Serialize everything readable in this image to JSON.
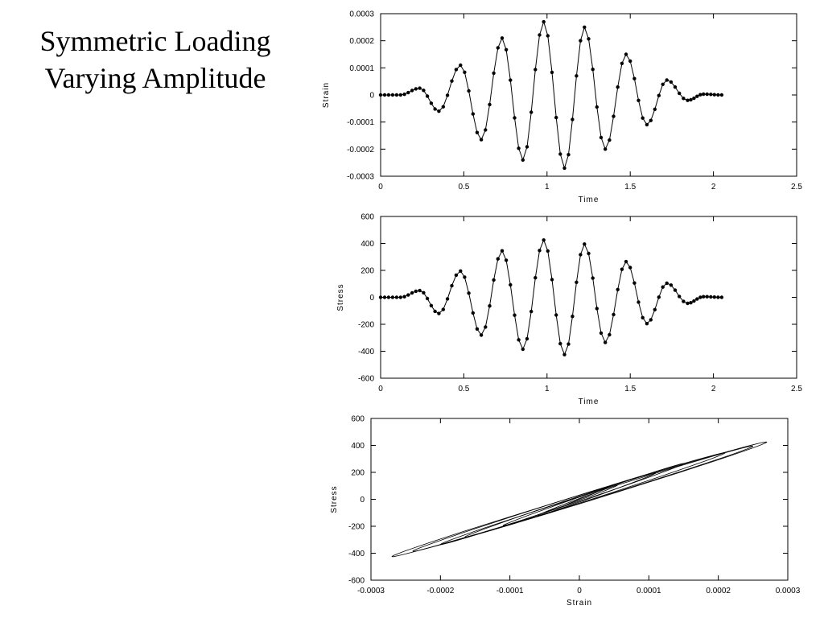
{
  "slide": {
    "title_line1": "Symmetric Loading",
    "title_line2": "Varying Amplitude"
  },
  "chart_data": [
    {
      "type": "line",
      "xlabel": "Time",
      "ylabel": "Strain",
      "xlim": [
        0,
        2.5
      ],
      "ylim": [
        -0.0003,
        0.0003
      ],
      "xticks": [
        0,
        0.5,
        1,
        1.5,
        2,
        2.5
      ],
      "xtick_labels": [
        "0",
        "0.5",
        "1",
        "1.5",
        "2",
        "2.5"
      ],
      "yticks": [
        -0.0003,
        -0.0002,
        -0.0001,
        0,
        0.0001,
        0.0002,
        0.0003
      ],
      "ytick_labels": [
        "-0.0003",
        "-0.0002",
        "-0.0001",
        "0",
        "0.0001",
        "0.0002",
        "0.0003"
      ],
      "markers": true,
      "grid": false,
      "series": [
        {
          "x": [
            0,
            0.12,
            0.235,
            0.35,
            0.48,
            0.605,
            0.73,
            0.855,
            0.98,
            1.105,
            1.225,
            1.35,
            1.475,
            1.6,
            1.72,
            1.845,
            1.94,
            2.05
          ],
          "values": [
            0,
            0,
            2.5e-05,
            -6e-05,
            0.00011,
            -0.000165,
            0.00021,
            -0.00024,
            0.00027,
            -0.00027,
            0.00025,
            -0.0002,
            0.00015,
            -0.00011,
            5.5e-05,
            -2e-05,
            3e-06,
            0
          ]
        }
      ]
    },
    {
      "type": "line",
      "xlabel": "Time",
      "ylabel": "Stress",
      "xlim": [
        0,
        2.5
      ],
      "ylim": [
        -600,
        600
      ],
      "xticks": [
        0,
        0.5,
        1,
        1.5,
        2,
        2.5
      ],
      "xtick_labels": [
        "0",
        "0.5",
        "1",
        "1.5",
        "2",
        "2.5"
      ],
      "yticks": [
        -600,
        -400,
        -200,
        0,
        200,
        400,
        600
      ],
      "ytick_labels": [
        "-600",
        "-400",
        "-200",
        "0",
        "200",
        "400",
        "600"
      ],
      "markers": true,
      "grid": false,
      "series": [
        {
          "x": [
            0,
            0.12,
            0.235,
            0.35,
            0.48,
            0.605,
            0.73,
            0.855,
            0.98,
            1.105,
            1.225,
            1.35,
            1.475,
            1.6,
            1.72,
            1.845,
            1.94,
            2.05
          ],
          "values": [
            0,
            0,
            50,
            -120,
            195,
            -280,
            345,
            -385,
            425,
            -425,
            395,
            -335,
            265,
            -195,
            105,
            -45,
            5,
            0
          ]
        }
      ]
    },
    {
      "type": "line",
      "xlabel": "Strain",
      "ylabel": "Stress",
      "xlim": [
        -0.0003,
        0.0003
      ],
      "ylim": [
        -600,
        600
      ],
      "xticks": [
        -0.0003,
        -0.0002,
        -0.0001,
        0,
        0.0001,
        0.0002,
        0.0003
      ],
      "xtick_labels": [
        "-0.0003",
        "-0.0002",
        "-0.0001",
        "0",
        "0.0001",
        "0.0002",
        "0.0003"
      ],
      "yticks": [
        -600,
        -400,
        -200,
        0,
        200,
        400,
        600
      ],
      "ytick_labels": [
        "-600",
        "-400",
        "-200",
        "0",
        "200",
        "400",
        "600"
      ],
      "markers": false,
      "grid": false,
      "series": [
        {
          "strain_peaks": [
            2.5e-05,
            -6e-05,
            0.00011,
            -0.000165,
            0.00021,
            -0.00024,
            0.00027,
            -0.00027,
            0.00025,
            -0.0002,
            0.00015,
            -0.00011,
            5.5e-05,
            -2e-05
          ],
          "stress_peaks": [
            50,
            -120,
            195,
            -280,
            345,
            -385,
            425,
            -425,
            395,
            -335,
            265,
            -195,
            105,
            -45
          ]
        }
      ]
    }
  ]
}
